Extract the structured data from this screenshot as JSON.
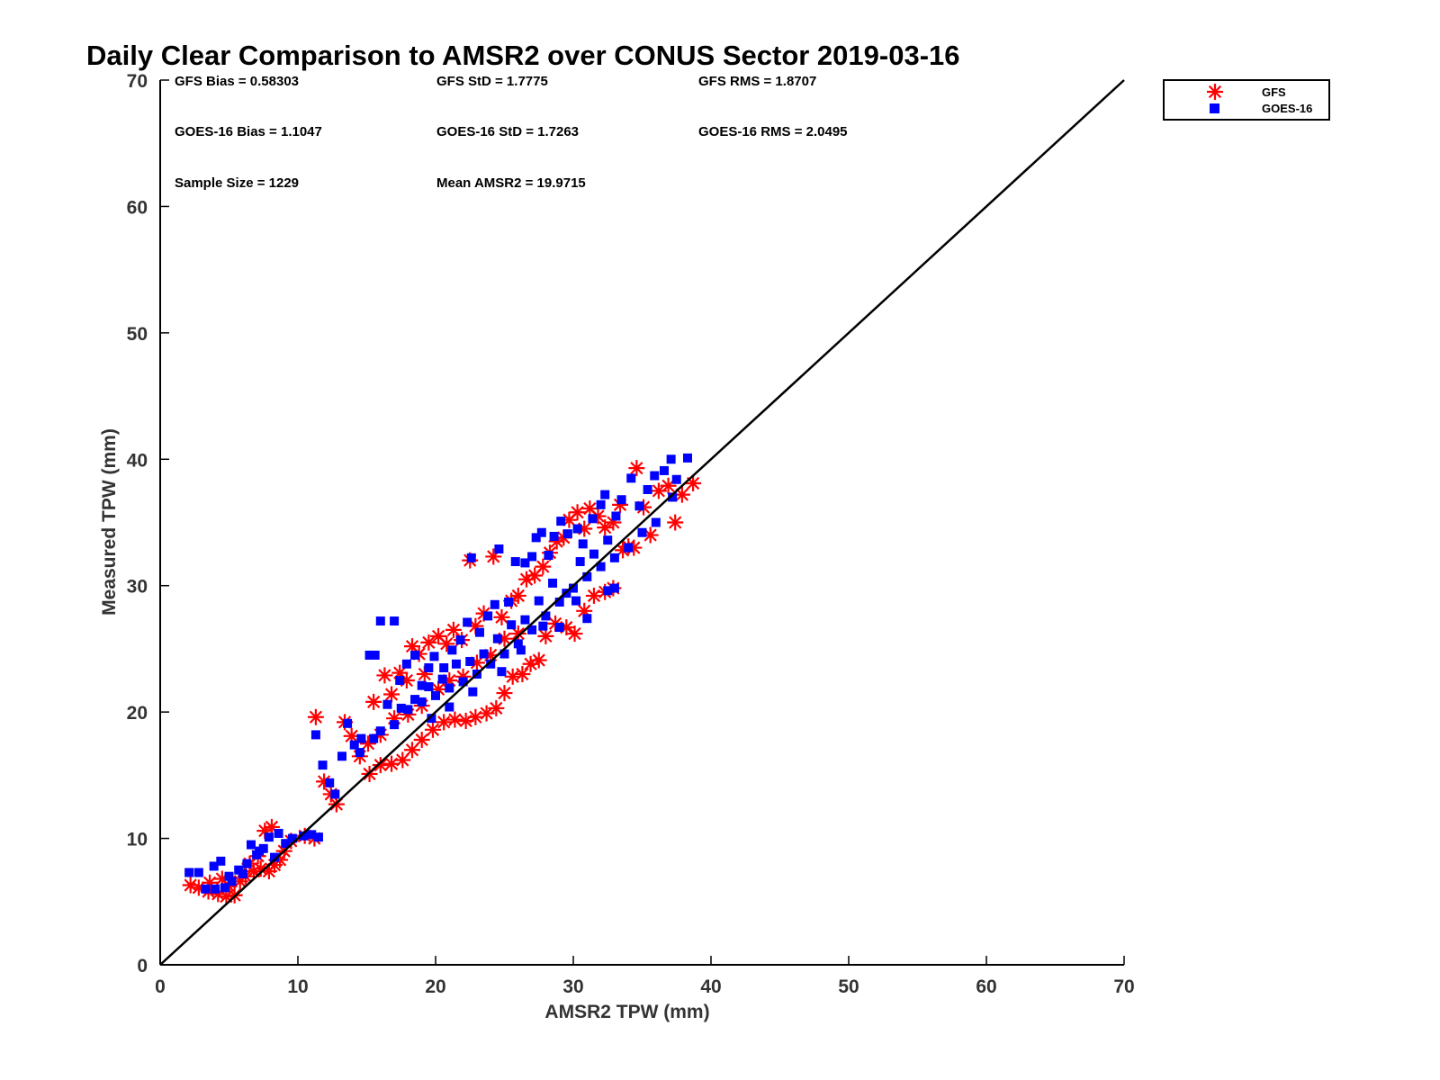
{
  "chart_data": {
    "type": "scatter",
    "title": "Daily Clear Comparison to AMSR2 over CONUS Sector 2019-03-16",
    "xlabel": "AMSR2 TPW (mm)",
    "ylabel": "Measured TPW (mm)",
    "xlim": [
      0,
      70
    ],
    "ylim": [
      0,
      70
    ],
    "xticks": [
      "0",
      "10",
      "20",
      "30",
      "40",
      "50",
      "60",
      "70"
    ],
    "yticks": [
      "0",
      "10",
      "20",
      "30",
      "40",
      "50",
      "60",
      "70"
    ],
    "grid": false,
    "legend_position": "top-right, outside plot",
    "reference_line": {
      "from": [
        0,
        0
      ],
      "to": [
        70,
        70
      ],
      "color": "#000000"
    },
    "stats": [
      "GFS Bias = 0.58303",
      "GFS StD = 1.7775",
      "GFS RMS = 1.8707",
      "GOES-16 Bias = 1.1047",
      "GOES-16 StD = 1.7263",
      "GOES-16 RMS = 2.0495",
      "Sample Size = 1229",
      "Mean AMSR2 = 19.9715"
    ],
    "series": [
      {
        "name": "GFS",
        "marker": "asterisk",
        "color": "#ff0000",
        "points": [
          [
            2.2,
            6.3
          ],
          [
            2.8,
            6.1
          ],
          [
            3.5,
            5.8
          ],
          [
            4.2,
            5.6
          ],
          [
            4.8,
            5.4
          ],
          [
            5.4,
            5.5
          ],
          [
            5.0,
            6.2
          ],
          [
            5.8,
            6.6
          ],
          [
            6.2,
            7.0
          ],
          [
            6.8,
            7.4
          ],
          [
            7.3,
            7.6
          ],
          [
            7.9,
            7.4
          ],
          [
            8.3,
            7.9
          ],
          [
            8.7,
            8.3
          ],
          [
            9.0,
            9.0
          ],
          [
            9.5,
            9.8
          ],
          [
            10.5,
            10.2
          ],
          [
            11.2,
            10.0
          ],
          [
            7.6,
            10.6
          ],
          [
            8.1,
            10.9
          ],
          [
            3.6,
            6.5
          ],
          [
            4.5,
            6.8
          ],
          [
            6.5,
            8.0
          ],
          [
            7.1,
            8.6
          ],
          [
            11.3,
            19.6
          ],
          [
            11.9,
            14.5
          ],
          [
            12.4,
            13.5
          ],
          [
            12.8,
            12.7
          ],
          [
            13.4,
            19.2
          ],
          [
            13.9,
            18.1
          ],
          [
            14.5,
            16.5
          ],
          [
            15.1,
            17.5
          ],
          [
            15.5,
            20.8
          ],
          [
            16.0,
            18.2
          ],
          [
            16.3,
            22.9
          ],
          [
            16.8,
            21.4
          ],
          [
            17.4,
            23.1
          ],
          [
            17.9,
            22.5
          ],
          [
            18.3,
            25.2
          ],
          [
            18.8,
            24.6
          ],
          [
            19.2,
            23.0
          ],
          [
            19.5,
            25.5
          ],
          [
            20.2,
            26.0
          ],
          [
            20.8,
            25.4
          ],
          [
            21.3,
            26.5
          ],
          [
            21.9,
            25.7
          ],
          [
            22.5,
            32.0
          ],
          [
            22.9,
            26.8
          ],
          [
            23.5,
            27.8
          ],
          [
            24.2,
            32.3
          ],
          [
            24.8,
            27.5
          ],
          [
            25.5,
            28.8
          ],
          [
            26.0,
            29.2
          ],
          [
            26.6,
            30.5
          ],
          [
            27.2,
            30.8
          ],
          [
            27.8,
            31.5
          ],
          [
            28.3,
            32.6
          ],
          [
            28.8,
            33.5
          ],
          [
            29.3,
            33.8
          ],
          [
            29.7,
            35.2
          ],
          [
            30.3,
            35.8
          ],
          [
            30.8,
            34.5
          ],
          [
            31.2,
            36.1
          ],
          [
            31.8,
            35.5
          ],
          [
            32.3,
            34.6
          ],
          [
            32.9,
            35.0
          ],
          [
            33.4,
            36.4
          ],
          [
            34.0,
            33.1
          ],
          [
            34.6,
            39.3
          ],
          [
            35.1,
            36.2
          ],
          [
            35.6,
            34.0
          ],
          [
            36.2,
            37.5
          ],
          [
            36.9,
            37.9
          ],
          [
            37.4,
            35.0
          ],
          [
            37.9,
            37.2
          ],
          [
            38.7,
            38.1
          ],
          [
            15.2,
            15.1
          ],
          [
            16.0,
            15.8
          ],
          [
            16.8,
            15.9
          ],
          [
            17.6,
            16.2
          ],
          [
            18.3,
            17.0
          ],
          [
            19.0,
            17.8
          ],
          [
            19.8,
            18.6
          ],
          [
            20.6,
            19.2
          ],
          [
            21.4,
            19.4
          ],
          [
            22.2,
            19.3
          ],
          [
            22.9,
            19.6
          ],
          [
            23.7,
            19.9
          ],
          [
            24.4,
            20.3
          ],
          [
            25.0,
            21.5
          ],
          [
            25.6,
            22.8
          ],
          [
            26.3,
            23.0
          ],
          [
            26.9,
            23.8
          ],
          [
            27.5,
            24.1
          ],
          [
            28.0,
            26.0
          ],
          [
            28.7,
            27.0
          ],
          [
            29.5,
            26.7
          ],
          [
            30.1,
            26.2
          ],
          [
            30.8,
            28.0
          ],
          [
            31.5,
            29.2
          ],
          [
            32.3,
            29.5
          ],
          [
            32.9,
            29.8
          ],
          [
            33.6,
            32.8
          ],
          [
            34.4,
            33.0
          ],
          [
            20.2,
            21.8
          ],
          [
            21.0,
            22.5
          ],
          [
            22.0,
            22.8
          ],
          [
            23.0,
            23.9
          ],
          [
            24.0,
            24.5
          ],
          [
            25.0,
            25.8
          ],
          [
            26.0,
            26.2
          ],
          [
            19.0,
            20.5
          ],
          [
            18.0,
            19.8
          ],
          [
            17.0,
            19.5
          ]
        ]
      },
      {
        "name": "GOES-16",
        "marker": "square",
        "color": "#0000ff",
        "points": [
          [
            2.1,
            7.3
          ],
          [
            2.8,
            7.3
          ],
          [
            3.3,
            6.0
          ],
          [
            3.9,
            7.8
          ],
          [
            4.4,
            8.2
          ],
          [
            4.7,
            6.1
          ],
          [
            5.2,
            6.6
          ],
          [
            5.7,
            7.5
          ],
          [
            6.3,
            8.0
          ],
          [
            6.6,
            9.5
          ],
          [
            7.0,
            8.7
          ],
          [
            7.5,
            9.2
          ],
          [
            7.9,
            10.1
          ],
          [
            8.3,
            8.5
          ],
          [
            8.6,
            10.4
          ],
          [
            9.1,
            9.6
          ],
          [
            9.6,
            10.0
          ],
          [
            10.4,
            10.2
          ],
          [
            11.0,
            10.3
          ],
          [
            11.5,
            10.1
          ],
          [
            4.0,
            6.0
          ],
          [
            5.0,
            7.0
          ],
          [
            6.0,
            7.2
          ],
          [
            7.2,
            9.0
          ],
          [
            11.3,
            18.2
          ],
          [
            11.8,
            15.8
          ],
          [
            12.3,
            14.4
          ],
          [
            12.7,
            13.5
          ],
          [
            13.2,
            16.5
          ],
          [
            13.6,
            19.1
          ],
          [
            14.1,
            17.4
          ],
          [
            14.6,
            17.9
          ],
          [
            15.2,
            24.5
          ],
          [
            15.6,
            24.5
          ],
          [
            16.0,
            27.2
          ],
          [
            16.5,
            20.6
          ],
          [
            17.0,
            27.2
          ],
          [
            17.4,
            22.5
          ],
          [
            17.9,
            23.8
          ],
          [
            18.5,
            24.5
          ],
          [
            19.0,
            22.1
          ],
          [
            19.5,
            23.5
          ],
          [
            19.9,
            24.4
          ],
          [
            20.6,
            23.5
          ],
          [
            21.2,
            24.9
          ],
          [
            21.8,
            25.7
          ],
          [
            22.3,
            27.1
          ],
          [
            22.6,
            32.2
          ],
          [
            23.2,
            26.3
          ],
          [
            23.8,
            27.6
          ],
          [
            24.3,
            28.5
          ],
          [
            24.6,
            32.9
          ],
          [
            25.3,
            28.7
          ],
          [
            25.8,
            31.9
          ],
          [
            26.5,
            31.8
          ],
          [
            27.0,
            32.3
          ],
          [
            27.3,
            33.8
          ],
          [
            27.7,
            34.2
          ],
          [
            28.2,
            32.4
          ],
          [
            28.6,
            33.9
          ],
          [
            29.1,
            35.1
          ],
          [
            29.6,
            34.1
          ],
          [
            30.3,
            34.5
          ],
          [
            30.7,
            33.3
          ],
          [
            31.4,
            35.3
          ],
          [
            32.0,
            36.4
          ],
          [
            32.3,
            37.2
          ],
          [
            33.1,
            35.5
          ],
          [
            33.5,
            36.8
          ],
          [
            34.2,
            38.5
          ],
          [
            34.8,
            36.3
          ],
          [
            35.4,
            37.6
          ],
          [
            35.9,
            38.7
          ],
          [
            36.6,
            39.1
          ],
          [
            37.1,
            40.0
          ],
          [
            37.5,
            38.4
          ],
          [
            38.3,
            40.1
          ],
          [
            37.2,
            37.0
          ],
          [
            16.0,
            18.5
          ],
          [
            17.0,
            19.0
          ],
          [
            18.0,
            20.2
          ],
          [
            19.0,
            20.8
          ],
          [
            20.0,
            21.3
          ],
          [
            21.0,
            21.9
          ],
          [
            22.0,
            22.4
          ],
          [
            23.0,
            23.0
          ],
          [
            24.0,
            23.8
          ],
          [
            25.0,
            24.6
          ],
          [
            26.0,
            25.4
          ],
          [
            27.0,
            26.5
          ],
          [
            28.0,
            27.6
          ],
          [
            29.0,
            28.7
          ],
          [
            30.0,
            29.8
          ],
          [
            31.0,
            30.7
          ],
          [
            32.0,
            31.5
          ],
          [
            33.0,
            32.2
          ],
          [
            34.0,
            33.0
          ],
          [
            35.0,
            34.2
          ],
          [
            36.0,
            35.0
          ],
          [
            19.5,
            22.0
          ],
          [
            21.5,
            23.8
          ],
          [
            23.5,
            24.6
          ],
          [
            25.5,
            26.9
          ],
          [
            27.5,
            28.8
          ],
          [
            29.5,
            29.4
          ],
          [
            31.5,
            32.5
          ],
          [
            18.5,
            21.0
          ],
          [
            20.5,
            22.6
          ],
          [
            22.5,
            24.0
          ],
          [
            24.5,
            25.8
          ],
          [
            26.5,
            27.3
          ],
          [
            28.5,
            30.2
          ],
          [
            30.5,
            31.9
          ],
          [
            32.5,
            33.6
          ],
          [
            14.5,
            16.8
          ],
          [
            15.5,
            17.9
          ],
          [
            17.5,
            20.3
          ],
          [
            27.8,
            26.8
          ],
          [
            29.0,
            26.7
          ],
          [
            30.2,
            28.8
          ],
          [
            31.0,
            27.4
          ],
          [
            32.5,
            29.6
          ],
          [
            33.0,
            29.8
          ],
          [
            24.8,
            23.2
          ],
          [
            26.2,
            24.9
          ],
          [
            21.0,
            20.4
          ],
          [
            22.7,
            21.6
          ],
          [
            19.7,
            19.5
          ]
        ]
      }
    ]
  }
}
